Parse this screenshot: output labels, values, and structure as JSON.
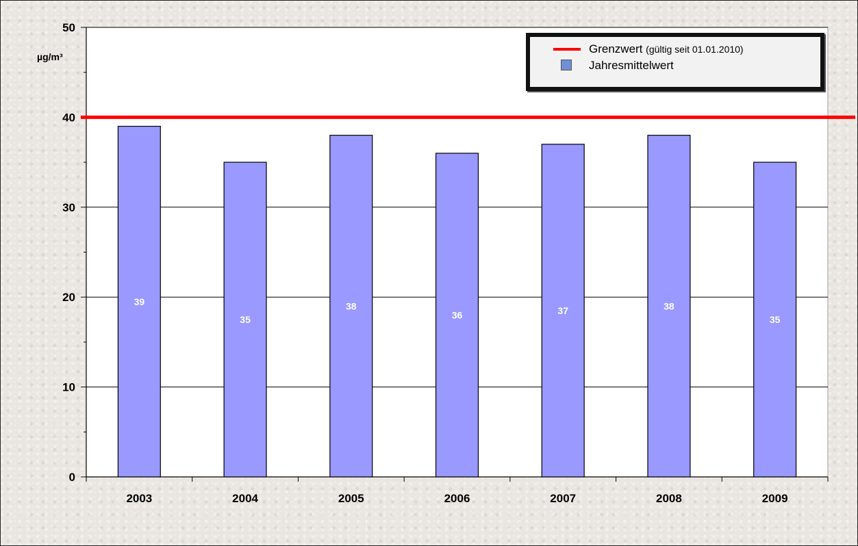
{
  "chart_data": {
    "type": "bar",
    "title": "",
    "xlabel": "",
    "ylabel": "µg/m³",
    "ylim": [
      0,
      50
    ],
    "yticks": [
      "0",
      "10",
      "20",
      "30",
      "40",
      "50"
    ],
    "categories": [
      "2003",
      "2004",
      "2005",
      "2006",
      "2007",
      "2008",
      "2009"
    ],
    "series": [
      {
        "name": "Jahresmittelwert",
        "values": [
          39,
          35,
          38,
          36,
          37,
          38,
          35
        ],
        "color": "#9999ff",
        "data_labels": [
          "39",
          "35",
          "38",
          "36",
          "37",
          "38",
          "35"
        ]
      }
    ],
    "reference_line": {
      "name": "Grenzwert",
      "note": "(gültig seit 01.01.2010)",
      "value": 40,
      "color": "#ff0000"
    },
    "grid": true,
    "legend_position": "top-right",
    "plot_background": "#ffffff"
  },
  "legend": {
    "limit_label": "Grenzwert",
    "limit_note": "(gültig seit 01.01.2010)",
    "mean_label": "Jahresmittelwert"
  }
}
